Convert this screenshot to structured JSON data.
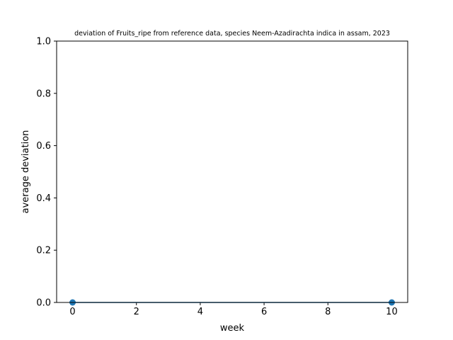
{
  "chart_data": {
    "type": "line",
    "title": "deviation of Fruits_ripe from reference data, species Neem-Azadirachta indica in assam, 2023",
    "xlabel": "week",
    "ylabel": "average deviation",
    "xlim": [
      -0.5,
      10.5
    ],
    "ylim": [
      0,
      1
    ],
    "x_ticks": [
      0,
      2,
      4,
      6,
      8,
      10
    ],
    "x_tick_labels": [
      "0",
      "2",
      "4",
      "6",
      "8",
      "10"
    ],
    "y_ticks": [
      0,
      0.2,
      0.4,
      0.6,
      0.8,
      1.0
    ],
    "y_tick_labels": [
      "0.0",
      "0.2",
      "0.4",
      "0.6",
      "0.8",
      "1.0"
    ],
    "grid": false,
    "series": [
      {
        "x": [
          0,
          10
        ],
        "y": [
          0,
          0
        ],
        "color": "#1f77b4",
        "marker": "circle"
      }
    ]
  }
}
